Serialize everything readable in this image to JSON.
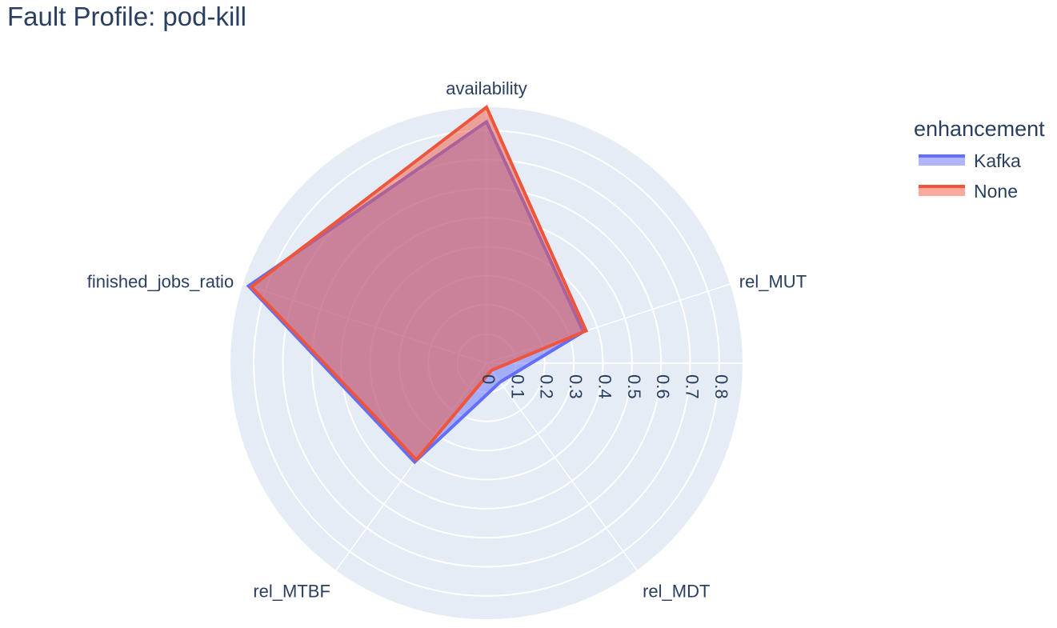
{
  "chart_data": {
    "type": "radar",
    "title": "Fault Profile: pod-kill",
    "axes": [
      "availability",
      "rel_MUT",
      "rel_MDT",
      "rel_MTBF",
      "finished_jobs_ratio"
    ],
    "radial_ticks": [
      "0",
      "0.1",
      "0.2",
      "0.3",
      "0.4",
      "0.5",
      "0.6",
      "0.7",
      "0.8"
    ],
    "radial_range": [
      0,
      0.88
    ],
    "grid": true,
    "legend": {
      "title": "enhancement",
      "placement": "top-right"
    },
    "series": [
      {
        "name": "Kafka",
        "values": [
          0.83,
          0.35,
          0.08,
          0.42,
          0.86
        ],
        "color": "#636efa"
      },
      {
        "name": "None",
        "values": [
          0.88,
          0.36,
          0.03,
          0.41,
          0.85
        ],
        "color": "#ef553b"
      }
    ]
  }
}
